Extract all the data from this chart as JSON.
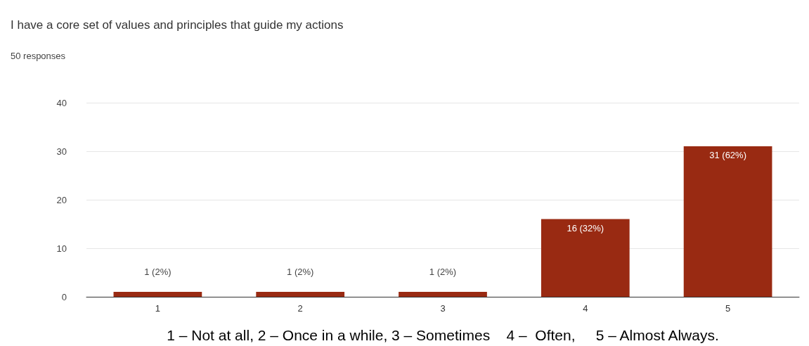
{
  "chart_data": {
    "type": "bar",
    "title": "I have a core set of values and principles that guide my actions",
    "subtitle": "50 responses",
    "xlabel": "1 – Not at all, 2 – Once in a while, 3 – Sometimes    4 –  Often,     5 – Almost Always.",
    "categories": [
      "1",
      "2",
      "3",
      "4",
      "5"
    ],
    "values": [
      1,
      1,
      1,
      16,
      31
    ],
    "value_labels": [
      "1 (2%)",
      "1 (2%)",
      "1 (2%)",
      "16 (32%)",
      "31 (62%)"
    ],
    "color": "#992a12",
    "ylim": [
      0,
      40
    ],
    "yticks": [
      0,
      10,
      20,
      30,
      40
    ],
    "grid": "y"
  }
}
